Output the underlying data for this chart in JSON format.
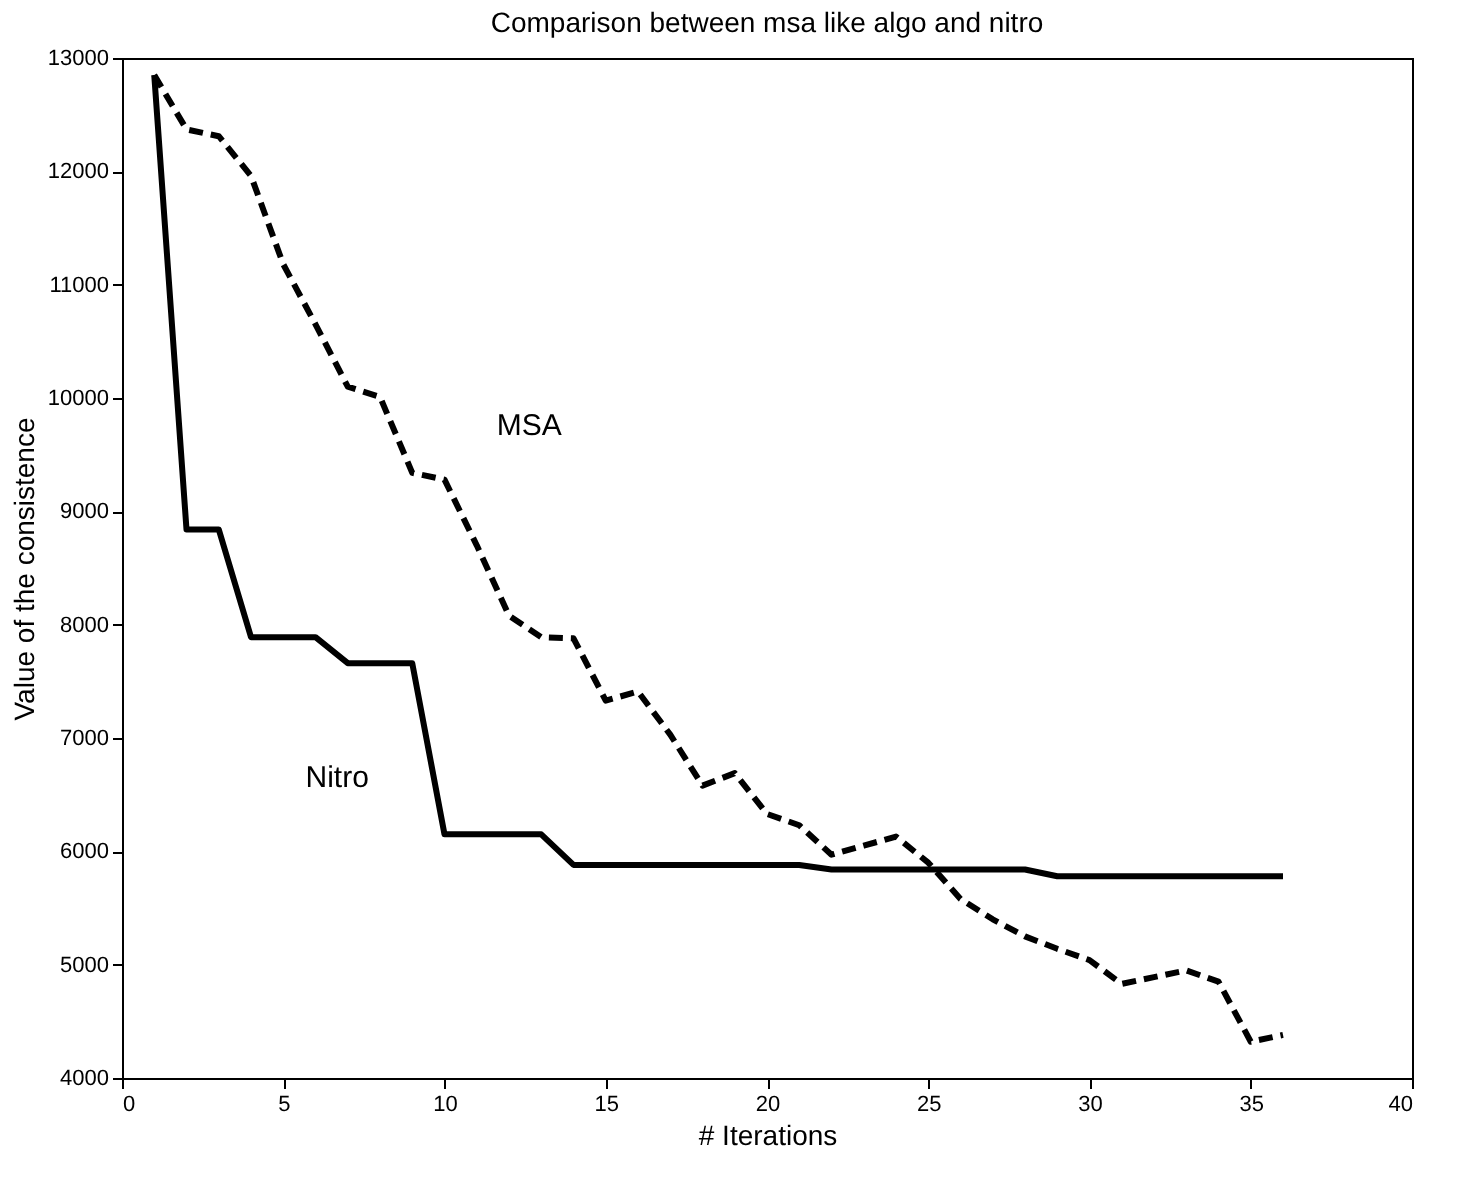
{
  "chart_data": {
    "type": "line",
    "title": "Comparison between msa like algo and nitro",
    "xlabel": "# Iterations",
    "ylabel": "Value of the consistence",
    "x": [
      1,
      2,
      3,
      4,
      5,
      6,
      7,
      8,
      9,
      10,
      11,
      12,
      13,
      14,
      15,
      16,
      17,
      18,
      19,
      20,
      21,
      22,
      23,
      24,
      25,
      26,
      27,
      28,
      29,
      30,
      31,
      32,
      33,
      34,
      35,
      36
    ],
    "series": [
      {
        "name": "MSA",
        "color": "#000000",
        "line_style": "dashed",
        "values": [
          12850,
          12370,
          12310,
          11960,
          11180,
          10650,
          10100,
          10010,
          9340,
          9280,
          8700,
          8080,
          7890,
          7880,
          7330,
          7410,
          7030,
          6580,
          6690,
          6330,
          6230,
          5970,
          6050,
          6130,
          5900,
          5580,
          5400,
          5250,
          5140,
          5040,
          4830,
          4890,
          4950,
          4850,
          4320,
          4380
        ]
      },
      {
        "name": "Nitro",
        "color": "#000000",
        "line_style": "solid",
        "values": [
          12850,
          8840,
          8840,
          7890,
          7890,
          7890,
          7660,
          7660,
          7660,
          6150,
          6150,
          6150,
          6150,
          5880,
          5880,
          5880,
          5880,
          5880,
          5880,
          5880,
          5880,
          5840,
          5840,
          5840,
          5840,
          5840,
          5840,
          5840,
          5780,
          5780,
          5780,
          5780,
          5780,
          5780,
          5780,
          5780
        ]
      }
    ],
    "xlim": [
      0,
      40
    ],
    "xticks": [
      0,
      5,
      10,
      15,
      20,
      25,
      30,
      35,
      40
    ],
    "ylim": [
      4000,
      13000
    ],
    "yticks": [
      4000,
      5000,
      6000,
      7000,
      8000,
      9000,
      10000,
      11000,
      12000,
      13000
    ],
    "grid": false,
    "legend": false,
    "marker": "none"
  }
}
